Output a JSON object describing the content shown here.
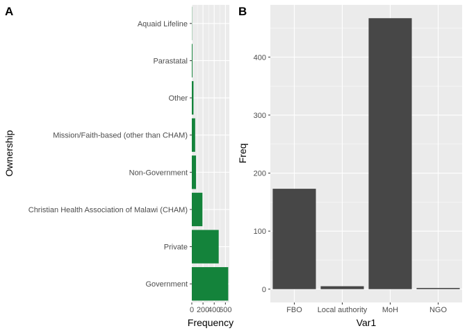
{
  "chart_data": [
    {
      "tag": "A",
      "type": "bar",
      "orientation": "horizontal",
      "xlabel": "Frequency",
      "ylabel": "Ownership",
      "categories": [
        "Government",
        "Private",
        "Christian Health Association of Malawi (CHAM)",
        "Non-Government",
        "Mission/Faith-based (other than CHAM)",
        "Other",
        "Parastatal",
        "Aquaid Lifeline"
      ],
      "values": [
        650,
        480,
        190,
        75,
        60,
        30,
        12,
        2
      ],
      "xlim": [
        0,
        670
      ],
      "xticks": [
        0,
        200,
        400,
        600
      ],
      "xtick_labels": [
        "0",
        "200",
        "400",
        "600"
      ],
      "grid": true,
      "bar_color": "#14833b",
      "panel_color": "#ebebeb"
    },
    {
      "tag": "B",
      "type": "bar",
      "orientation": "vertical",
      "xlabel": "Var1",
      "ylabel": "Freq",
      "categories": [
        "FBO",
        "Local authority",
        "MoH",
        "NGO"
      ],
      "values": [
        173,
        5,
        467,
        2
      ],
      "ylim": [
        -23,
        490
      ],
      "yticks": [
        0,
        100,
        200,
        300,
        400
      ],
      "ytick_labels": [
        "0",
        "100",
        "200",
        "300",
        "400"
      ],
      "grid": true,
      "bar_color": "#474747",
      "panel_color": "#ebebeb"
    }
  ]
}
